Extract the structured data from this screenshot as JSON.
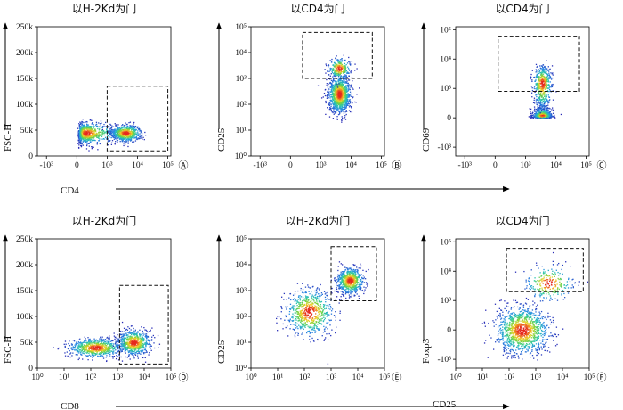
{
  "figure": {
    "shared_arrows": [
      {
        "label": "CD4",
        "row": 1
      },
      {
        "label": "CD8",
        "row": 2
      }
    ]
  },
  "chart_data": [
    {
      "type": "scatter",
      "panel_label": "Ⓐ",
      "title": "以H-2Kd为门",
      "xlabel": "",
      "ylabel": "FSC-H",
      "x_scale": "biexponential",
      "y_scale": "linear",
      "xticks": [
        "-10³",
        "0",
        "10³",
        "10⁴",
        "10⁵"
      ],
      "yticks": [
        "0",
        "50k",
        "100k",
        "150k",
        "200k",
        "250k"
      ],
      "ylim": [
        0,
        250000
      ],
      "populations": [
        {
          "x_center": 300,
          "y_center": 45000,
          "x_spread_decades": 0.4,
          "y_spread": 10000,
          "weight": 0.55
        },
        {
          "x_center": 4000,
          "y_center": 45000,
          "x_spread_decades": 0.25,
          "y_spread": 8000,
          "weight": 0.45
        }
      ],
      "gate": {
        "x": [
          1000,
          100000
        ],
        "y": [
          10000,
          135000
        ]
      }
    },
    {
      "type": "scatter",
      "panel_label": "Ⓑ",
      "title": "以CD4为门",
      "xlabel": "",
      "ylabel": "CD25",
      "x_scale": "biexponential",
      "y_scale": "log",
      "xticks": [
        "-10³",
        "0",
        "10³",
        "10⁴",
        "10⁵"
      ],
      "yticks": [
        "10⁰",
        "10¹",
        "10²",
        "10³",
        "10⁴",
        "10⁵"
      ],
      "ylim": [
        1,
        100000
      ],
      "populations": [
        {
          "x_center": 4000,
          "y_center": 250,
          "x_spread_decades": 0.18,
          "y_spread_decades": 0.35,
          "weight": 0.8
        },
        {
          "x_center": 4000,
          "y_center": 2500,
          "x_spread_decades": 0.18,
          "y_spread_decades": 0.2,
          "weight": 0.2
        }
      ],
      "gate": {
        "x": [
          400,
          50000
        ],
        "y": [
          1000,
          60000
        ]
      }
    },
    {
      "type": "scatter",
      "panel_label": "Ⓒ",
      "title": "以CD4为门",
      "xlabel": "",
      "ylabel": "CD69",
      "x_scale": "biexponential",
      "y_scale": "biexponential",
      "xticks": [
        "-10³",
        "0",
        "10³",
        "10⁴",
        "10⁵"
      ],
      "yticks": [
        "-10³",
        "0",
        "10³",
        "10⁴",
        "10⁵"
      ],
      "populations": [
        {
          "x_center": 3500,
          "y_center": 80,
          "x_spread_decades": 0.15,
          "y_spread_decades": 0.35,
          "weight": 0.65
        },
        {
          "x_center": 3500,
          "y_center": 1500,
          "x_spread_decades": 0.15,
          "y_spread_decades": 0.3,
          "weight": 0.35
        }
      ],
      "gate": {
        "x": [
          100,
          60000
        ],
        "y": [
          900,
          60000
        ]
      }
    },
    {
      "type": "scatter",
      "panel_label": "Ⓓ",
      "title": "以H-2Kd为门",
      "xlabel": "",
      "ylabel": "FSC-H",
      "x_scale": "log",
      "y_scale": "linear",
      "xticks": [
        "10⁰",
        "10¹",
        "10²",
        "10³",
        "10⁴",
        "10⁵"
      ],
      "yticks": [
        "0",
        "50k",
        "100k",
        "150k",
        "200k",
        "250k"
      ],
      "ylim": [
        0,
        250000
      ],
      "populations": [
        {
          "x_center": 150,
          "y_center": 40000,
          "x_spread_decades": 0.5,
          "y_spread": 9000,
          "weight": 0.5
        },
        {
          "x_center": 4000,
          "y_center": 50000,
          "x_spread_decades": 0.3,
          "y_spread": 12000,
          "weight": 0.5
        }
      ],
      "gate": {
        "x": [
          1200,
          80000
        ],
        "y": [
          8000,
          160000
        ]
      }
    },
    {
      "type": "scatter",
      "panel_label": "Ⓔ",
      "title": "以H-2Kd为门",
      "xlabel": "",
      "ylabel": "CD25",
      "x_scale": "log",
      "y_scale": "log",
      "xticks": [
        "10⁰",
        "10¹",
        "10²",
        "10³",
        "10⁴",
        "10⁵"
      ],
      "yticks": [
        "10⁰",
        "10¹",
        "10²",
        "10³",
        "10⁴",
        "10⁵"
      ],
      "ylim": [
        1,
        100000
      ],
      "populations": [
        {
          "x_center": 150,
          "y_center": 150,
          "x_spread_decades": 0.45,
          "y_spread_decades": 0.45,
          "weight": 0.5
        },
        {
          "x_center": 5000,
          "y_center": 2500,
          "x_spread_decades": 0.25,
          "y_spread_decades": 0.25,
          "weight": 0.5
        }
      ],
      "gate": {
        "x": [
          1000,
          50000
        ],
        "y": [
          400,
          50000
        ]
      }
    },
    {
      "type": "scatter",
      "panel_label": "Ⓕ",
      "title": "以CD4为门",
      "xlabel": "CD25",
      "ylabel": "Foxp3",
      "x_scale": "log",
      "y_scale": "biexponential",
      "xticks": [
        "10⁰",
        "10¹",
        "10²",
        "10³",
        "10⁴",
        "10⁵"
      ],
      "yticks": [
        "-10³",
        "0",
        "10³",
        "10⁴",
        "10⁵"
      ],
      "populations": [
        {
          "x_center": 300,
          "y_center": 0,
          "x_spread_decades": 0.5,
          "y_spread_decades": 0.3,
          "weight": 0.82
        },
        {
          "x_center": 3000,
          "y_center": 4000,
          "x_spread_decades": 0.45,
          "y_spread_decades": 0.3,
          "weight": 0.18
        }
      ],
      "gate": {
        "x": [
          80,
          60000
        ],
        "y": [
          2000,
          60000
        ]
      }
    }
  ]
}
